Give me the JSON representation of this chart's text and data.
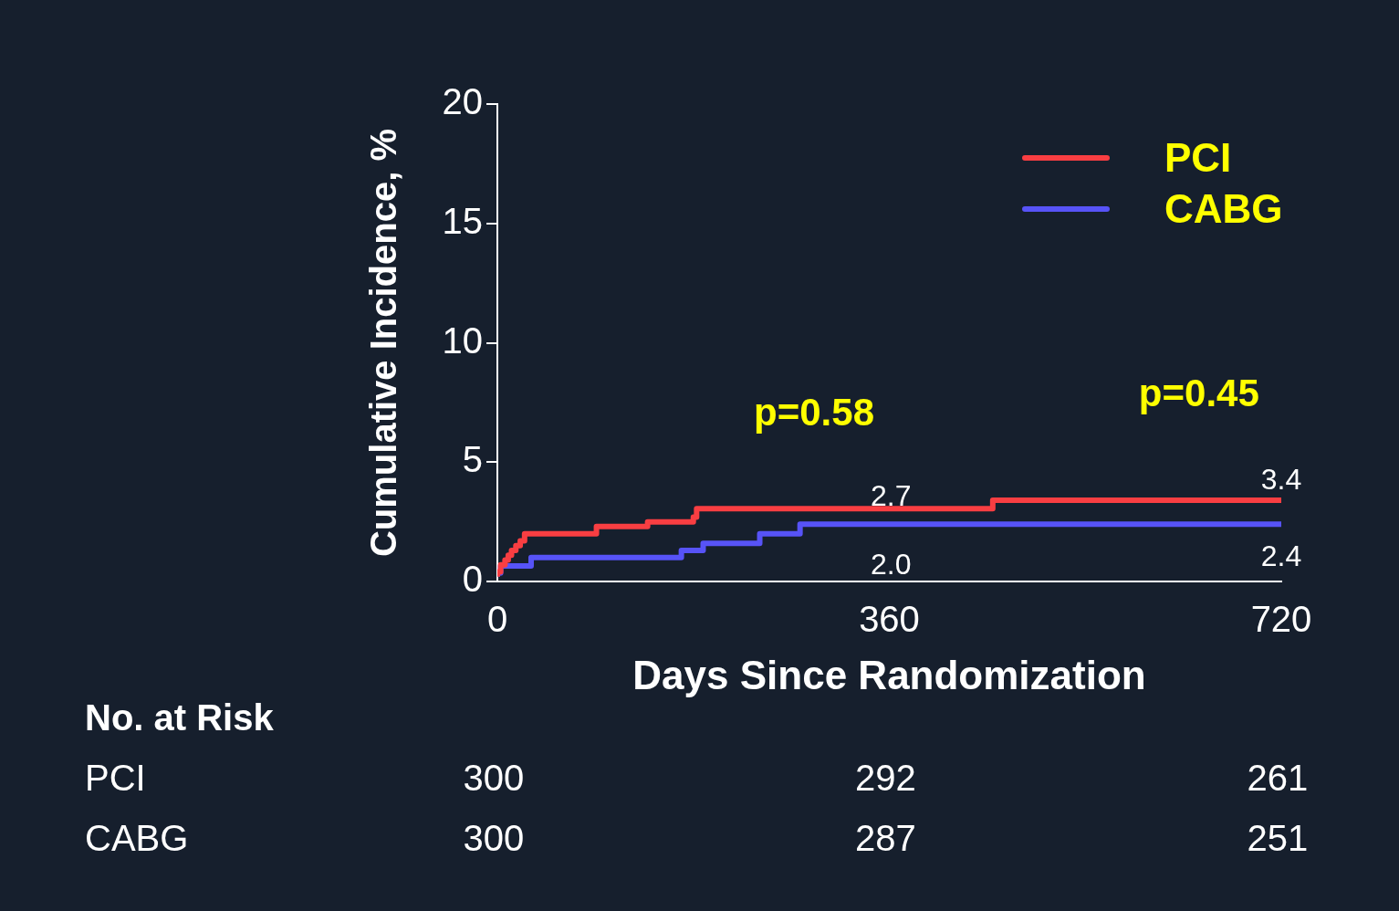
{
  "chart_data": {
    "type": "step",
    "xlabel": "Days Since Randomization",
    "ylabel": "Cumulative Incidence, %",
    "xlim": [
      0,
      720
    ],
    "xticks": [
      0,
      360,
      720
    ],
    "ylim": [
      0,
      20
    ],
    "yticks": [
      0,
      5,
      10,
      15,
      20
    ],
    "legend": "top right",
    "series": [
      {
        "name": "PCI",
        "color": "#f93e42",
        "x": [
          0,
          3,
          7,
          10,
          13,
          17,
          21,
          25,
          91,
          138,
          180,
          183,
          455,
          488,
          720
        ],
        "values": [
          0.2,
          0.4,
          0.7,
          0.9,
          1.1,
          1.3,
          1.5,
          1.7,
          2.0,
          2.3,
          2.5,
          2.7,
          3.05,
          3.4,
          3.4
        ]
      },
      {
        "name": "CABG",
        "color": "#5753f7",
        "x": [
          0,
          3,
          31,
          169,
          189,
          241,
          278,
          559,
          720
        ],
        "values": [
          0.2,
          0.35,
          0.65,
          1.0,
          1.3,
          1.6,
          2.0,
          2.4,
          2.4
        ]
      }
    ],
    "annotations": [
      "p=0.58",
      "p=0.45",
      "2.7",
      "2.0",
      "3.4",
      "2.4",
      "No. at Risk",
      "PCI",
      "300",
      "292",
      "261",
      "CABG",
      "300",
      "287",
      "251"
    ]
  }
}
